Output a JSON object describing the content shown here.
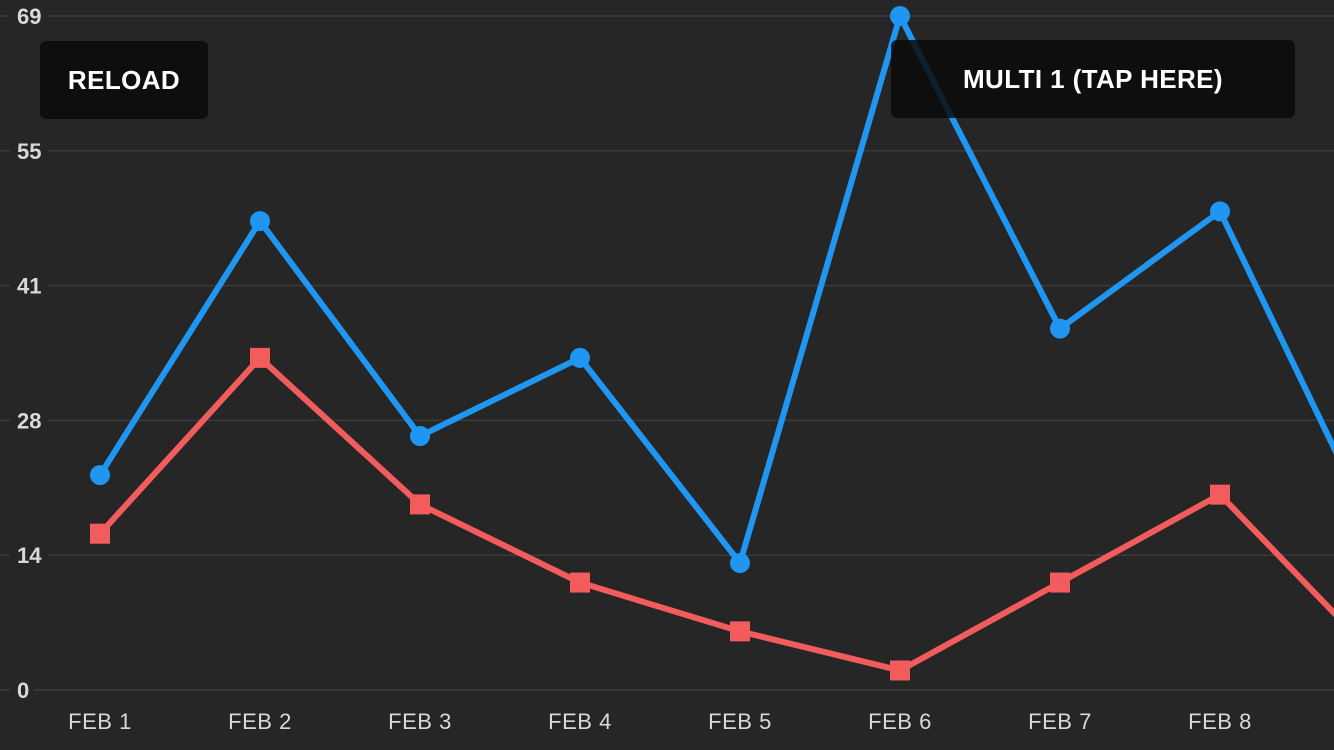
{
  "app": {
    "background_color": "#262626"
  },
  "buttons": {
    "reload_label": "RELOAD",
    "multi_label": "MULTI 1 (TAP HERE)",
    "background_color": "rgba(10,10,10,0.84)",
    "text_color": "#ffffff"
  },
  "chart_data": {
    "type": "line",
    "title": "",
    "x_labels": [
      "FEB 1",
      "FEB 2",
      "FEB 3",
      "FEB 4",
      "FEB 5",
      "FEB 6",
      "FEB 7",
      "FEB 8"
    ],
    "y_axis": {
      "min": 0,
      "max": 69,
      "tick_labels": [
        "0",
        "14",
        "28",
        "41",
        "55",
        "69"
      ]
    },
    "grid": {
      "horizontal": true,
      "vertical": false,
      "color": "#3b3b3b"
    },
    "legend_position": "none",
    "axis_text_color": "#d9d9d9",
    "series": [
      {
        "name": "series-blue",
        "marker": "circle",
        "color": "#1e96f2",
        "values": [
          22,
          48,
          26,
          34,
          13,
          69,
          37,
          49
        ],
        "offscreen_next_value": 15
      },
      {
        "name": "series-red",
        "marker": "square",
        "color": "#f25c5c",
        "values": [
          16,
          34,
          19,
          11,
          6,
          2,
          11,
          20
        ],
        "offscreen_next_value": 3
      }
    ]
  }
}
